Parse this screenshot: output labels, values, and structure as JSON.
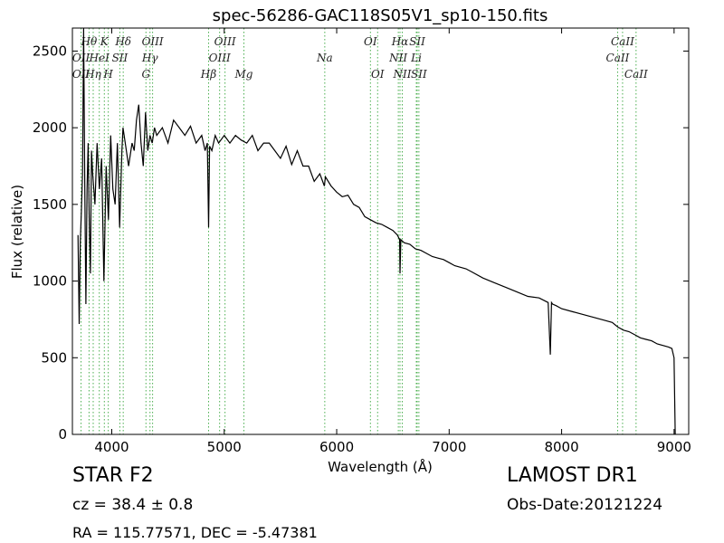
{
  "chart_data": {
    "type": "line",
    "title": "spec-56286-GAC118S05V1_sp10-150.fits",
    "xlabel": "Wavelength (Å)",
    "ylabel": "Flux (relative)",
    "xlim": [
      3650,
      9130
    ],
    "ylim": [
      0,
      2650
    ],
    "xticks": [
      4000,
      5000,
      6000,
      7000,
      8000,
      9000
    ],
    "yticks": [
      0,
      500,
      1000,
      1500,
      2000,
      2500
    ],
    "grid": false,
    "series": [
      {
        "x": [
          3700,
          3710,
          3720,
          3730,
          3740,
          3750,
          3760,
          3770,
          3780,
          3790,
          3800,
          3810,
          3820,
          3830,
          3850,
          3870,
          3890,
          3910,
          3930,
          3950,
          3970,
          3990,
          4010,
          4030,
          4050,
          4070,
          4090,
          4100,
          4120,
          4150,
          4180,
          4200,
          4220,
          4240,
          4260,
          4280,
          4300,
          4320,
          4340,
          4360,
          4380,
          4400,
          4450,
          4500,
          4550,
          4600,
          4650,
          4700,
          4750,
          4800,
          4830,
          4850,
          4861,
          4870,
          4890,
          4920,
          4950,
          5000,
          5050,
          5100,
          5150,
          5200,
          5250,
          5300,
          5350,
          5400,
          5450,
          5500,
          5550,
          5600,
          5650,
          5700,
          5750,
          5800,
          5850,
          5890,
          5900,
          5950,
          6000,
          6050,
          6100,
          6150,
          6200,
          6250,
          6300,
          6350,
          6400,
          6450,
          6500,
          6540,
          6560,
          6563,
          6570,
          6600,
          6650,
          6700,
          6750,
          6800,
          6850,
          6900,
          6950,
          7000,
          7050,
          7100,
          7150,
          7200,
          7300,
          7400,
          7500,
          7600,
          7700,
          7800,
          7880,
          7900,
          7910,
          7920,
          7950,
          8000,
          8100,
          8200,
          8300,
          8400,
          8450,
          8500,
          8550,
          8600,
          8650,
          8700,
          8750,
          8800,
          8850,
          8900,
          8950,
          8980,
          9000,
          9010
        ],
        "y": [
          1300,
          720,
          1250,
          1450,
          1700,
          2700,
          1600,
          850,
          1600,
          1900,
          1400,
          1050,
          1850,
          1700,
          1500,
          1900,
          1600,
          1800,
          1000,
          1750,
          1400,
          1950,
          1600,
          1500,
          1900,
          1350,
          1850,
          2000,
          1900,
          1750,
          1900,
          1850,
          2050,
          2150,
          1900,
          1750,
          2100,
          1850,
          1950,
          1900,
          2000,
          1950,
          2000,
          1900,
          2050,
          2000,
          1950,
          2010,
          1900,
          1950,
          1850,
          1900,
          1350,
          1880,
          1850,
          1950,
          1900,
          1950,
          1900,
          1950,
          1920,
          1900,
          1950,
          1850,
          1900,
          1900,
          1850,
          1800,
          1880,
          1760,
          1850,
          1750,
          1750,
          1650,
          1700,
          1620,
          1680,
          1620,
          1580,
          1550,
          1560,
          1500,
          1480,
          1420,
          1400,
          1380,
          1370,
          1350,
          1330,
          1300,
          1270,
          1050,
          1270,
          1250,
          1240,
          1210,
          1200,
          1180,
          1160,
          1150,
          1140,
          1120,
          1100,
          1090,
          1080,
          1060,
          1020,
          990,
          960,
          930,
          900,
          890,
          860,
          520,
          860,
          850,
          840,
          820,
          800,
          780,
          760,
          740,
          730,
          700,
          680,
          670,
          650,
          630,
          620,
          610,
          590,
          580,
          570,
          560,
          500,
          0
        ]
      }
    ],
    "annotations": [
      {
        "label": "OII",
        "x": 3727,
        "row": 2
      },
      {
        "label": "OII",
        "x": 3727,
        "row": 3
      },
      {
        "label": "Hθ",
        "x": 3798,
        "row": 1
      },
      {
        "label": "Hη",
        "x": 3835,
        "row": 3
      },
      {
        "label": "HeI",
        "x": 3889,
        "row": 2
      },
      {
        "label": "K",
        "x": 3934,
        "row": 1
      },
      {
        "label": "H",
        "x": 3969,
        "row": 3
      },
      {
        "label": "SII",
        "x": 4072,
        "row": 2
      },
      {
        "label": "Hδ",
        "x": 4102,
        "row": 1
      },
      {
        "label": "G",
        "x": 4304,
        "row": 3
      },
      {
        "label": "Hγ",
        "x": 4340,
        "row": 2
      },
      {
        "label": "OIII",
        "x": 4363,
        "row": 1
      },
      {
        "label": "Hβ",
        "x": 4861,
        "row": 3
      },
      {
        "label": "OIII",
        "x": 4959,
        "row": 2
      },
      {
        "label": "OIII",
        "x": 5007,
        "row": 1
      },
      {
        "label": "Mg",
        "x": 5175,
        "row": 3
      },
      {
        "label": "Na",
        "x": 5894,
        "row": 2
      },
      {
        "label": "OI",
        "x": 6300,
        "row": 1
      },
      {
        "label": "OI",
        "x": 6364,
        "row": 3
      },
      {
        "label": "NII",
        "x": 6548,
        "row": 2
      },
      {
        "label": "Hα",
        "x": 6563,
        "row": 1
      },
      {
        "label": "NII",
        "x": 6583,
        "row": 3
      },
      {
        "label": "Li",
        "x": 6708,
        "row": 2
      },
      {
        "label": "SII",
        "x": 6716,
        "row": 1
      },
      {
        "label": "SII",
        "x": 6731,
        "row": 3
      },
      {
        "label": "CaII",
        "x": 8498,
        "row": 2
      },
      {
        "label": "CaII",
        "x": 8542,
        "row": 1
      },
      {
        "label": "CaII",
        "x": 8662,
        "row": 3
      }
    ]
  },
  "info": {
    "class": "STAR   F2",
    "survey": "LAMOST DR1",
    "redshift": "cz = 38.4  ± 0.8",
    "obsdate": "Obs-Date:20121224",
    "coords": "RA = 115.77571, DEC = -5.47381"
  },
  "colors": {
    "spectrum": "#000000",
    "line_markers": "#4caf50"
  }
}
